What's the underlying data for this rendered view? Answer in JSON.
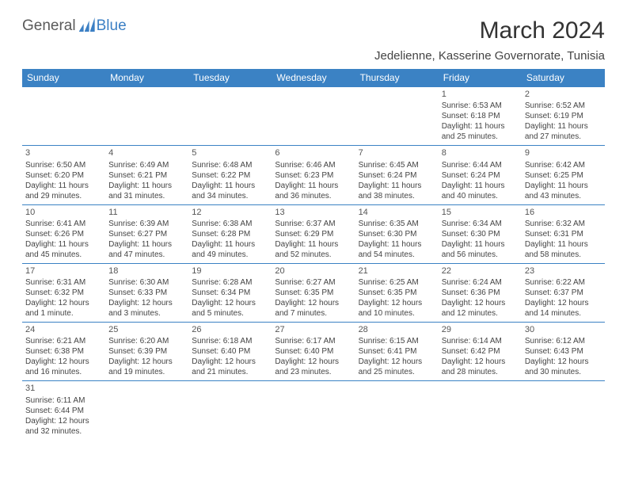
{
  "logo": {
    "general": "General",
    "blue": "Blue"
  },
  "header": {
    "month_title": "March 2024",
    "location": "Jedelienne, Kasserine Governorate, Tunisia"
  },
  "colors": {
    "header_bg": "#3b82c4",
    "header_fg": "#ffffff",
    "border": "#3b82c4",
    "text": "#444444",
    "logo_blue": "#3b7fc4"
  },
  "weekdays": [
    "Sunday",
    "Monday",
    "Tuesday",
    "Wednesday",
    "Thursday",
    "Friday",
    "Saturday"
  ],
  "cells": [
    {
      "day": "",
      "sunrise": "",
      "sunset": "",
      "daylight": ""
    },
    {
      "day": "",
      "sunrise": "",
      "sunset": "",
      "daylight": ""
    },
    {
      "day": "",
      "sunrise": "",
      "sunset": "",
      "daylight": ""
    },
    {
      "day": "",
      "sunrise": "",
      "sunset": "",
      "daylight": ""
    },
    {
      "day": "",
      "sunrise": "",
      "sunset": "",
      "daylight": ""
    },
    {
      "day": "1",
      "sunrise": "Sunrise: 6:53 AM",
      "sunset": "Sunset: 6:18 PM",
      "daylight": "Daylight: 11 hours and 25 minutes."
    },
    {
      "day": "2",
      "sunrise": "Sunrise: 6:52 AM",
      "sunset": "Sunset: 6:19 PM",
      "daylight": "Daylight: 11 hours and 27 minutes."
    },
    {
      "day": "3",
      "sunrise": "Sunrise: 6:50 AM",
      "sunset": "Sunset: 6:20 PM",
      "daylight": "Daylight: 11 hours and 29 minutes."
    },
    {
      "day": "4",
      "sunrise": "Sunrise: 6:49 AM",
      "sunset": "Sunset: 6:21 PM",
      "daylight": "Daylight: 11 hours and 31 minutes."
    },
    {
      "day": "5",
      "sunrise": "Sunrise: 6:48 AM",
      "sunset": "Sunset: 6:22 PM",
      "daylight": "Daylight: 11 hours and 34 minutes."
    },
    {
      "day": "6",
      "sunrise": "Sunrise: 6:46 AM",
      "sunset": "Sunset: 6:23 PM",
      "daylight": "Daylight: 11 hours and 36 minutes."
    },
    {
      "day": "7",
      "sunrise": "Sunrise: 6:45 AM",
      "sunset": "Sunset: 6:24 PM",
      "daylight": "Daylight: 11 hours and 38 minutes."
    },
    {
      "day": "8",
      "sunrise": "Sunrise: 6:44 AM",
      "sunset": "Sunset: 6:24 PM",
      "daylight": "Daylight: 11 hours and 40 minutes."
    },
    {
      "day": "9",
      "sunrise": "Sunrise: 6:42 AM",
      "sunset": "Sunset: 6:25 PM",
      "daylight": "Daylight: 11 hours and 43 minutes."
    },
    {
      "day": "10",
      "sunrise": "Sunrise: 6:41 AM",
      "sunset": "Sunset: 6:26 PM",
      "daylight": "Daylight: 11 hours and 45 minutes."
    },
    {
      "day": "11",
      "sunrise": "Sunrise: 6:39 AM",
      "sunset": "Sunset: 6:27 PM",
      "daylight": "Daylight: 11 hours and 47 minutes."
    },
    {
      "day": "12",
      "sunrise": "Sunrise: 6:38 AM",
      "sunset": "Sunset: 6:28 PM",
      "daylight": "Daylight: 11 hours and 49 minutes."
    },
    {
      "day": "13",
      "sunrise": "Sunrise: 6:37 AM",
      "sunset": "Sunset: 6:29 PM",
      "daylight": "Daylight: 11 hours and 52 minutes."
    },
    {
      "day": "14",
      "sunrise": "Sunrise: 6:35 AM",
      "sunset": "Sunset: 6:30 PM",
      "daylight": "Daylight: 11 hours and 54 minutes."
    },
    {
      "day": "15",
      "sunrise": "Sunrise: 6:34 AM",
      "sunset": "Sunset: 6:30 PM",
      "daylight": "Daylight: 11 hours and 56 minutes."
    },
    {
      "day": "16",
      "sunrise": "Sunrise: 6:32 AM",
      "sunset": "Sunset: 6:31 PM",
      "daylight": "Daylight: 11 hours and 58 minutes."
    },
    {
      "day": "17",
      "sunrise": "Sunrise: 6:31 AM",
      "sunset": "Sunset: 6:32 PM",
      "daylight": "Daylight: 12 hours and 1 minute."
    },
    {
      "day": "18",
      "sunrise": "Sunrise: 6:30 AM",
      "sunset": "Sunset: 6:33 PM",
      "daylight": "Daylight: 12 hours and 3 minutes."
    },
    {
      "day": "19",
      "sunrise": "Sunrise: 6:28 AM",
      "sunset": "Sunset: 6:34 PM",
      "daylight": "Daylight: 12 hours and 5 minutes."
    },
    {
      "day": "20",
      "sunrise": "Sunrise: 6:27 AM",
      "sunset": "Sunset: 6:35 PM",
      "daylight": "Daylight: 12 hours and 7 minutes."
    },
    {
      "day": "21",
      "sunrise": "Sunrise: 6:25 AM",
      "sunset": "Sunset: 6:35 PM",
      "daylight": "Daylight: 12 hours and 10 minutes."
    },
    {
      "day": "22",
      "sunrise": "Sunrise: 6:24 AM",
      "sunset": "Sunset: 6:36 PM",
      "daylight": "Daylight: 12 hours and 12 minutes."
    },
    {
      "day": "23",
      "sunrise": "Sunrise: 6:22 AM",
      "sunset": "Sunset: 6:37 PM",
      "daylight": "Daylight: 12 hours and 14 minutes."
    },
    {
      "day": "24",
      "sunrise": "Sunrise: 6:21 AM",
      "sunset": "Sunset: 6:38 PM",
      "daylight": "Daylight: 12 hours and 16 minutes."
    },
    {
      "day": "25",
      "sunrise": "Sunrise: 6:20 AM",
      "sunset": "Sunset: 6:39 PM",
      "daylight": "Daylight: 12 hours and 19 minutes."
    },
    {
      "day": "26",
      "sunrise": "Sunrise: 6:18 AM",
      "sunset": "Sunset: 6:40 PM",
      "daylight": "Daylight: 12 hours and 21 minutes."
    },
    {
      "day": "27",
      "sunrise": "Sunrise: 6:17 AM",
      "sunset": "Sunset: 6:40 PM",
      "daylight": "Daylight: 12 hours and 23 minutes."
    },
    {
      "day": "28",
      "sunrise": "Sunrise: 6:15 AM",
      "sunset": "Sunset: 6:41 PM",
      "daylight": "Daylight: 12 hours and 25 minutes."
    },
    {
      "day": "29",
      "sunrise": "Sunrise: 6:14 AM",
      "sunset": "Sunset: 6:42 PM",
      "daylight": "Daylight: 12 hours and 28 minutes."
    },
    {
      "day": "30",
      "sunrise": "Sunrise: 6:12 AM",
      "sunset": "Sunset: 6:43 PM",
      "daylight": "Daylight: 12 hours and 30 minutes."
    },
    {
      "day": "31",
      "sunrise": "Sunrise: 6:11 AM",
      "sunset": "Sunset: 6:44 PM",
      "daylight": "Daylight: 12 hours and 32 minutes."
    },
    {
      "day": "",
      "sunrise": "",
      "sunset": "",
      "daylight": ""
    },
    {
      "day": "",
      "sunrise": "",
      "sunset": "",
      "daylight": ""
    },
    {
      "day": "",
      "sunrise": "",
      "sunset": "",
      "daylight": ""
    },
    {
      "day": "",
      "sunrise": "",
      "sunset": "",
      "daylight": ""
    },
    {
      "day": "",
      "sunrise": "",
      "sunset": "",
      "daylight": ""
    },
    {
      "day": "",
      "sunrise": "",
      "sunset": "",
      "daylight": ""
    }
  ]
}
